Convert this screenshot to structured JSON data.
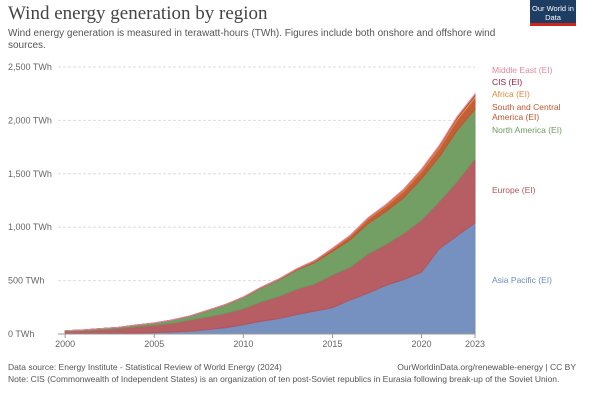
{
  "title": "Wind energy generation by region",
  "subtitle": "Wind energy generation is measured in terawatt-hours (TWh). Figures include both onshore and offshore wind sources.",
  "logo": "Our World in Data",
  "chart_data": {
    "type": "stacked-area",
    "x": [
      2000,
      2001,
      2002,
      2003,
      2004,
      2005,
      2006,
      2007,
      2008,
      2009,
      2010,
      2011,
      2012,
      2013,
      2014,
      2015,
      2016,
      2017,
      2018,
      2019,
      2020,
      2021,
      2022,
      2023
    ],
    "xlim": [
      1999.6,
      2023
    ],
    "xticks": [
      2000,
      2005,
      2010,
      2015,
      2020,
      2023
    ],
    "ylim": [
      0,
      2500
    ],
    "yticks": [
      {
        "value": 0,
        "label": "0 TWh"
      },
      {
        "value": 500,
        "label": "500 TWh"
      },
      {
        "value": 1000,
        "label": "1,000 TWh"
      },
      {
        "value": 1500,
        "label": "1,500 TWh"
      },
      {
        "value": 2000,
        "label": "2,000 TWh"
      },
      {
        "value": 2500,
        "label": "2,500 TWh"
      }
    ],
    "grid": true,
    "series": [
      {
        "name": "Asia Pacific (EI)",
        "color": "#6f8bbd",
        "values": [
          2,
          3,
          4,
          6,
          9,
          13,
          19,
          27,
          41,
          60,
          87,
          119,
          145,
          183,
          214,
          247,
          319,
          384,
          455,
          510,
          580,
          800,
          920,
          1040
        ]
      },
      {
        "name": "Europe (EI)",
        "color": "#b3545c",
        "values": [
          22,
          27,
          35,
          44,
          59,
          70,
          82,
          104,
          119,
          133,
          150,
          182,
          207,
          237,
          255,
          306,
          307,
          366,
          385,
          431,
          487,
          440,
          507,
          600
        ]
      },
      {
        "name": "North America (EI)",
        "color": "#6c9a5c",
        "values": [
          6,
          7,
          11,
          12,
          15,
          19,
          29,
          37,
          60,
          80,
          104,
          130,
          155,
          180,
          200,
          220,
          255,
          284,
          306,
          336,
          387,
          420,
          480,
          465
        ]
      },
      {
        "name": "South and Central America (EI)",
        "color": "#c0562c",
        "values": [
          0,
          0,
          0,
          0,
          0,
          0,
          0,
          0,
          1,
          1,
          3,
          4,
          6,
          8,
          14,
          21,
          33,
          42,
          50,
          58,
          66,
          77,
          95,
          105
        ]
      },
      {
        "name": "Africa (EI)",
        "color": "#df8a3a",
        "values": [
          0,
          0,
          0,
          0,
          1,
          1,
          1,
          1,
          1,
          2,
          2,
          2,
          2,
          2,
          4,
          6,
          8,
          10,
          13,
          17,
          18,
          21,
          22,
          24
        ]
      },
      {
        "name": "CIS (EI)",
        "color": "#9b1c3c",
        "values": [
          0,
          0,
          0,
          0,
          0,
          0,
          0,
          0,
          0,
          0,
          0,
          0,
          0,
          0,
          0,
          1,
          1,
          1,
          1,
          2,
          3,
          5,
          7,
          8
        ]
      },
      {
        "name": "Middle East (EI)",
        "color": "#e0899f",
        "values": [
          0,
          0,
          0,
          0,
          0,
          0,
          0,
          0,
          0,
          0,
          0,
          0,
          0,
          0,
          0,
          0,
          1,
          1,
          1,
          2,
          3,
          4,
          5,
          6
        ]
      }
    ]
  },
  "source": "Data source: Energy Institute - Statistical Review of World Energy (2024)",
  "url": "OurWorldinData.org/renewable-energy | CC BY",
  "note": "Note: CIS (Commonwealth of Independent States) is an organization of ten post-Soviet republics in Eurasia following break-up of the Soviet Union."
}
